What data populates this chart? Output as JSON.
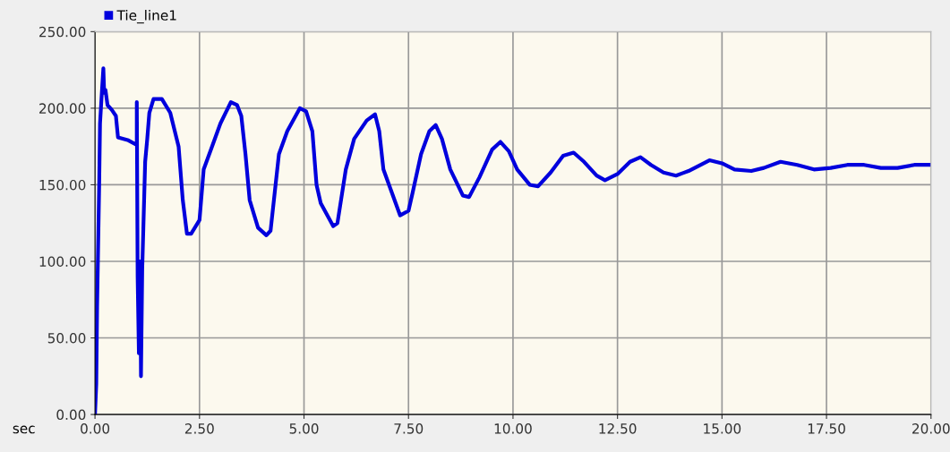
{
  "chart_data": {
    "type": "line",
    "xlabel": "sec",
    "legend": "top left",
    "grid": true,
    "marker": "none",
    "line_style": "solid",
    "xlim": [
      0,
      20
    ],
    "xticks": [
      {
        "value": 0,
        "label": "0.00"
      },
      {
        "value": 2.5,
        "label": "2.50"
      },
      {
        "value": 5,
        "label": "5.00"
      },
      {
        "value": 7.5,
        "label": "7.50"
      },
      {
        "value": 10,
        "label": "10.00"
      },
      {
        "value": 12.5,
        "label": "12.50"
      },
      {
        "value": 15,
        "label": "15.00"
      },
      {
        "value": 17.5,
        "label": "17.50"
      },
      {
        "value": 20,
        "label": "20.00"
      }
    ],
    "ylim": [
      0,
      250
    ],
    "yticks": [
      {
        "value": 0,
        "label": "0.00"
      },
      {
        "value": 50,
        "label": "50.00"
      },
      {
        "value": 100,
        "label": "100.00"
      },
      {
        "value": 150,
        "label": "150.00"
      },
      {
        "value": 200,
        "label": "200.00"
      },
      {
        "value": 250,
        "label": "250.00"
      }
    ],
    "series": [
      {
        "name": "Tie_line1",
        "color": "#0000dd",
        "x": [
          0,
          0.03,
          0.05,
          0.1,
          0.12,
          0.17,
          0.2,
          0.22,
          0.25,
          0.3,
          0.4,
          0.5,
          0.55,
          0.8,
          1.0,
          1.0,
          1.02,
          1.05,
          1.08,
          1.1,
          1.13,
          1.2,
          1.25,
          1.3,
          1.4,
          1.6,
          1.8,
          2.0,
          2.1,
          2.2,
          2.3,
          2.5,
          2.6,
          2.8,
          3.0,
          3.25,
          3.4,
          3.5,
          3.6,
          3.7,
          3.9,
          4.1,
          4.2,
          4.3,
          4.4,
          4.6,
          4.9,
          5.05,
          5.2,
          5.3,
          5.4,
          5.7,
          5.8,
          6.0,
          6.2,
          6.5,
          6.7,
          6.8,
          6.9,
          7.1,
          7.3,
          7.5,
          7.6,
          7.8,
          8.0,
          8.15,
          8.3,
          8.5,
          8.8,
          8.95,
          9.2,
          9.5,
          9.7,
          9.9,
          10.1,
          10.4,
          10.6,
          10.9,
          11.2,
          11.45,
          11.7,
          12.0,
          12.2,
          12.5,
          12.8,
          13.05,
          13.3,
          13.6,
          13.9,
          14.2,
          14.7,
          15.0,
          15.3,
          15.7,
          16.0,
          16.4,
          16.8,
          17.2,
          17.6,
          18.0,
          18.4,
          18.8,
          19.2,
          19.6,
          20.0
        ],
        "values": [
          0,
          20,
          70,
          150,
          190,
          213,
          226,
          210,
          212,
          202,
          199,
          195,
          181,
          179,
          176,
          204,
          90,
          40,
          100,
          25,
          95,
          165,
          180,
          197,
          206,
          206,
          197,
          175,
          140,
          118,
          118,
          127,
          160,
          175,
          190,
          204,
          202,
          195,
          170,
          140,
          122,
          117,
          120,
          145,
          170,
          185,
          200,
          198,
          185,
          150,
          138,
          123,
          125,
          160,
          180,
          192,
          196,
          185,
          160,
          145,
          130,
          133,
          145,
          170,
          185,
          189,
          180,
          160,
          143,
          142,
          155,
          173,
          178,
          172,
          160,
          150,
          149,
          158,
          169,
          171,
          165,
          156,
          153,
          157,
          165,
          168,
          163,
          158,
          156,
          159,
          166,
          164,
          160,
          159,
          161,
          165,
          163,
          160,
          161,
          163,
          163,
          161,
          161,
          163,
          163
        ]
      }
    ]
  }
}
